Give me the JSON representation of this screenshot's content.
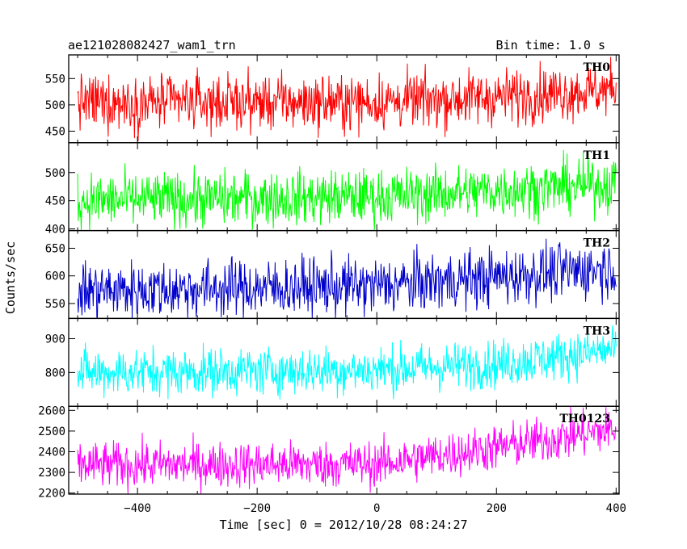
{
  "header": {
    "title": "ae121028082427_wam1_trn",
    "bin_time": "Bin time: 1.0 s"
  },
  "chart_data": {
    "type": "line",
    "title": "ae121028082427_wam1_trn",
    "xlabel": "Time [sec] 0 = 2012/10/28 08:24:27",
    "ylabel": "Counts/sec",
    "xlim": [
      -515,
      405
    ],
    "data_x_range": [
      -500,
      400
    ],
    "bin_s": 1.0,
    "x_ticks": [
      -400,
      -200,
      0,
      200,
      400
    ],
    "x_tick_labels": [
      "−400",
      "−200",
      "0",
      "200",
      "400"
    ],
    "panels": [
      {
        "name": "TH0",
        "color": "#ff0000",
        "ylim": [
          428,
          595
        ],
        "yticks": [
          450,
          500,
          550
        ],
        "trend": [
          [
            -500,
            505
          ],
          [
            0,
            505
          ],
          [
            200,
            515
          ],
          [
            400,
            530
          ]
        ],
        "noise_sd": 26,
        "spike_range": [
          428,
          595
        ]
      },
      {
        "name": "TH1",
        "color": "#00ff00",
        "ylim": [
          397,
          553
        ],
        "yticks": [
          400,
          450,
          500
        ],
        "trend": [
          [
            -500,
            450
          ],
          [
            0,
            457
          ],
          [
            200,
            468
          ],
          [
            400,
            480
          ]
        ],
        "noise_sd": 24,
        "spike_range": [
          397,
          540
        ]
      },
      {
        "name": "TH2",
        "color": "#0000cc",
        "ylim": [
          523,
          682
        ],
        "yticks": [
          550,
          600,
          650
        ],
        "trend": [
          [
            -500,
            573
          ],
          [
            0,
            582
          ],
          [
            200,
            598
          ],
          [
            400,
            615
          ]
        ],
        "noise_sd": 26,
        "spike_range": [
          523,
          675
        ]
      },
      {
        "name": "TH3",
        "color": "#00ffff",
        "ylim": [
          700,
          960
        ],
        "yticks": [
          800,
          900
        ],
        "trend": [
          [
            -500,
            800
          ],
          [
            0,
            808
          ],
          [
            200,
            825
          ],
          [
            400,
            868
          ]
        ],
        "noise_sd": 35,
        "spike_range": [
          720,
          940
        ]
      },
      {
        "name": "TH0123",
        "color": "#ff00ff",
        "ylim": [
          2195,
          2620
        ],
        "yticks": [
          2200,
          2300,
          2400,
          2500,
          2600
        ],
        "trend": [
          [
            -500,
            2335
          ],
          [
            0,
            2340
          ],
          [
            200,
            2420
          ],
          [
            400,
            2510
          ]
        ],
        "noise_sd": 55,
        "spike_range": [
          2195,
          2620
        ]
      }
    ]
  }
}
